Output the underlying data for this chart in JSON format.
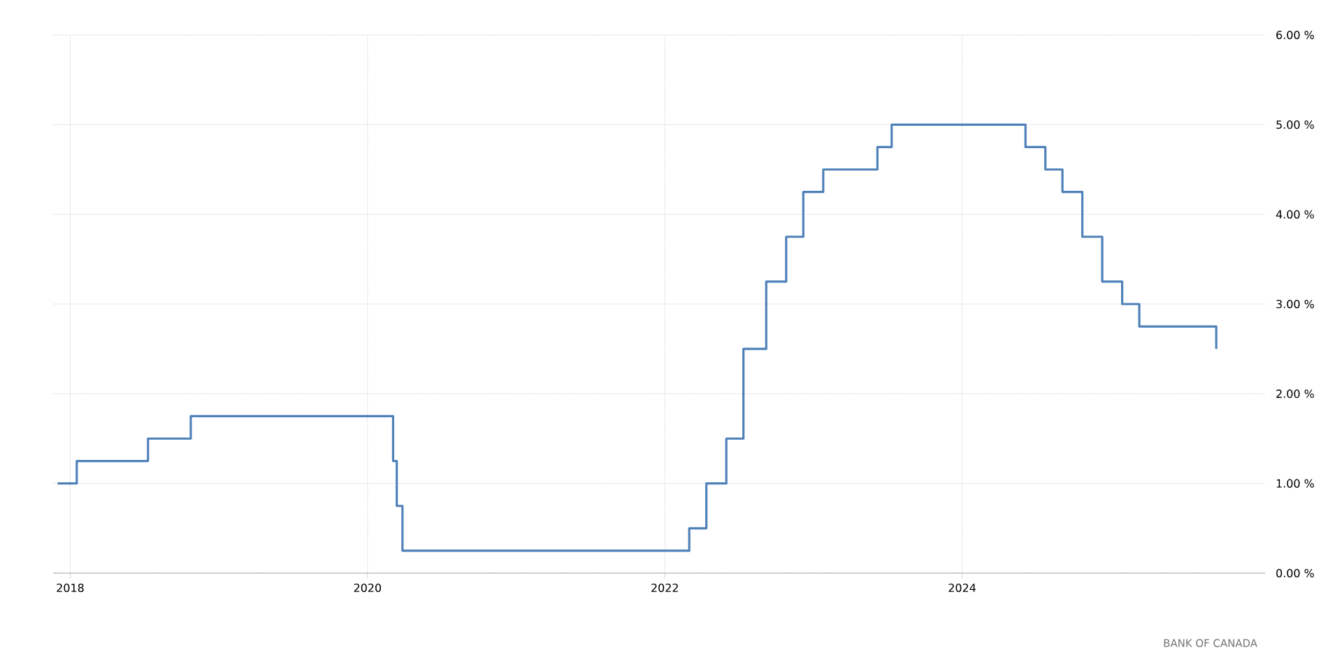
{
  "chart_data": {
    "type": "step",
    "x": [
      "2017-12-01",
      "2018-01-17",
      "2018-07-11",
      "2018-10-24",
      "2020-03-04",
      "2020-03-13",
      "2020-03-27",
      "2022-03-02",
      "2022-04-13",
      "2022-06-01",
      "2022-07-13",
      "2022-09-07",
      "2022-10-26",
      "2022-12-07",
      "2023-01-25",
      "2023-06-07",
      "2023-07-12",
      "2024-06-05",
      "2024-07-24",
      "2024-09-04",
      "2024-10-23",
      "2024-12-11",
      "2025-01-29",
      "2025-03-12",
      "2025-09-17"
    ],
    "series": [
      {
        "color": "#4f81b9",
        "values": [
          1.0,
          1.25,
          1.5,
          1.75,
          1.25,
          0.75,
          0.25,
          0.5,
          1.0,
          1.5,
          2.5,
          3.25,
          3.75,
          4.25,
          4.5,
          4.75,
          5.0,
          4.75,
          4.5,
          4.25,
          3.75,
          3.25,
          3.0,
          2.75,
          2.5
        ]
      }
    ],
    "xlim": [
      "2017-11-20",
      "2026-01-15"
    ],
    "xticks": [
      {
        "value": "2018",
        "label": "2018"
      },
      {
        "value": "2020",
        "label": "2020"
      },
      {
        "value": "2022",
        "label": "2022"
      },
      {
        "value": "2024",
        "label": "2024"
      }
    ],
    "ylim": [
      0,
      6
    ],
    "yticks": [
      {
        "value": 0,
        "label": "0.00 %"
      },
      {
        "value": 1,
        "label": "1.00 %"
      },
      {
        "value": 2,
        "label": "2.00 %"
      },
      {
        "value": 3,
        "label": "3.00 %"
      },
      {
        "value": 4,
        "label": "4.00 %"
      },
      {
        "value": 5,
        "label": "5.00 %"
      },
      {
        "value": 6,
        "label": "6.00 %"
      }
    ],
    "grid": true,
    "marker": "none",
    "line_style": "solid",
    "annotations": [
      "BANK OF CANADA"
    ]
  }
}
